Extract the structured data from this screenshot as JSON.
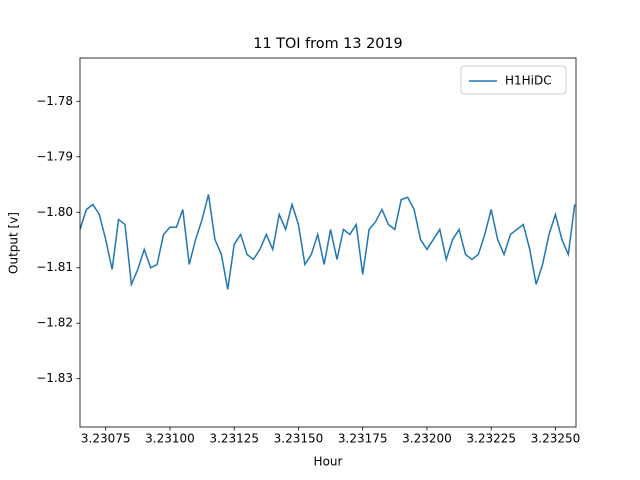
{
  "chart_data": {
    "type": "line",
    "title": "11 TOI from 13 2019",
    "x_label": "Hour",
    "y_label": "Output [v]",
    "x": [
      3.23065,
      3.230675,
      3.2307,
      3.230725,
      3.23075,
      3.230775,
      3.2308,
      3.230825,
      3.23085,
      3.230875,
      3.2309,
      3.230925,
      3.23095,
      3.230975,
      3.231,
      3.231025,
      3.23105,
      3.231075,
      3.2311,
      3.231125,
      3.23115,
      3.231175,
      3.2312,
      3.231225,
      3.23125,
      3.231275,
      3.2313,
      3.231325,
      3.23135,
      3.231375,
      3.2314,
      3.231425,
      3.23145,
      3.231475,
      3.2315,
      3.231525,
      3.23155,
      3.231575,
      3.2316,
      3.231625,
      3.23165,
      3.231675,
      3.2317,
      3.231725,
      3.23175,
      3.231775,
      3.2318,
      3.231825,
      3.23185,
      3.231875,
      3.2319,
      3.231925,
      3.23195,
      3.231975,
      3.232,
      3.232025,
      3.23205,
      3.232075,
      3.2321,
      3.232125,
      3.23215,
      3.232175,
      3.2322,
      3.232225,
      3.23225,
      3.232275,
      3.2323,
      3.232325,
      3.23235,
      3.232375,
      3.2324,
      3.232425,
      3.23245,
      3.232475,
      3.2325,
      3.232525,
      3.23255,
      3.232575
    ],
    "series": [
      {
        "name": "H1HiDC",
        "color": "#1f77b4",
        "values": [
          -1.8031,
          -1.7995,
          -1.7986,
          -1.8004,
          -1.8049,
          -1.8103,
          -1.8013,
          -1.8022,
          -1.813,
          -1.8103,
          -1.8067,
          -1.81,
          -1.8094,
          -1.804,
          -1.8027,
          -1.8027,
          -1.7995,
          -1.8094,
          -1.8049,
          -1.8013,
          -1.7968,
          -1.8049,
          -1.8076,
          -1.8139,
          -1.8058,
          -1.804,
          -1.8076,
          -1.8085,
          -1.8067,
          -1.804,
          -1.8067,
          -1.8004,
          -1.8031,
          -1.7986,
          -1.8022,
          -1.8094,
          -1.8076,
          -1.804,
          -1.8094,
          -1.8031,
          -1.8085,
          -1.8031,
          -1.804,
          -1.8022,
          -1.8112,
          -1.8031,
          -1.8017,
          -1.7995,
          -1.8022,
          -1.8031,
          -1.7977,
          -1.7973,
          -1.7995,
          -1.8049,
          -1.8067,
          -1.8049,
          -1.8031,
          -1.8085,
          -1.8049,
          -1.8031,
          -1.8076,
          -1.8085,
          -1.8076,
          -1.804,
          -1.7995,
          -1.8049,
          -1.8076,
          -1.804,
          -1.8031,
          -1.8022,
          -1.8067,
          -1.813,
          -1.8094,
          -1.804,
          -1.8004,
          -1.8049,
          -1.8076,
          -1.7986
        ]
      }
    ],
    "xlim": [
      3.23065,
      3.23258
    ],
    "ylim": [
      -1.8387,
      -1.7722
    ],
    "xticks": [
      3.23075,
      {
        "value": 3.231,
        "label": "3.23100"
      },
      3.23125,
      {
        "value": 3.2315,
        "label": "3.23150"
      },
      3.23175,
      {
        "value": 3.232,
        "label": "3.23200"
      },
      3.23225,
      {
        "value": 3.2325,
        "label": "3.23250"
      }
    ],
    "yticks": [
      {
        "value": -1.78,
        "label": "−1.78"
      },
      {
        "value": -1.79,
        "label": "−1.79"
      },
      {
        "value": -1.8,
        "label": "−1.80"
      },
      {
        "value": -1.81,
        "label": "−1.81"
      },
      {
        "value": -1.82,
        "label": "−1.82"
      },
      {
        "value": -1.83,
        "label": "−1.83"
      }
    ],
    "legend": "upper right"
  }
}
